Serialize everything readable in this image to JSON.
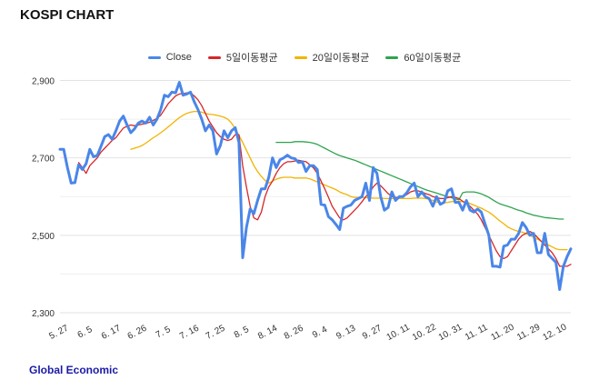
{
  "chart_title": "KOSPI CHART",
  "footer": "Global Economic",
  "colors": {
    "close": "#4a86e8",
    "ma5": "#d62728",
    "ma20": "#f1b400",
    "ma60": "#2ea44f",
    "grid": "#e2e2e2"
  },
  "chart_data": {
    "type": "line",
    "title": "KOSPI CHART",
    "xlabel": "",
    "ylabel": "",
    "ylim": [
      2300,
      2920
    ],
    "yticks": [
      2300,
      2500,
      2700,
      2900
    ],
    "ytick_labels": [
      "2,300",
      "2,500",
      "2,700",
      "2,900"
    ],
    "grid": true,
    "legend_position": "top",
    "x_ticks": [
      {
        "label": "5. 27",
        "index": 0
      },
      {
        "label": "6. 5",
        "index": 7
      },
      {
        "label": "6. 17",
        "index": 14
      },
      {
        "label": "6. 26",
        "index": 21
      },
      {
        "label": "7. 5",
        "index": 28
      },
      {
        "label": "7. 16",
        "index": 35
      },
      {
        "label": "7. 25",
        "index": 42
      },
      {
        "label": "8. 5",
        "index": 49
      },
      {
        "label": "8. 14",
        "index": 56
      },
      {
        "label": "8. 26",
        "index": 63
      },
      {
        "label": "9. 4",
        "index": 70
      },
      {
        "label": "9. 13",
        "index": 77
      },
      {
        "label": "9. 27",
        "index": 84
      },
      {
        "label": "10. 11",
        "index": 91
      },
      {
        "label": "10. 22",
        "index": 98
      },
      {
        "label": "10. 31",
        "index": 105
      },
      {
        "label": "11. 11",
        "index": 112
      },
      {
        "label": "11. 20",
        "index": 119
      },
      {
        "label": "11. 29",
        "index": 126
      },
      {
        "label": "12. 10",
        "index": 133
      }
    ],
    "series": [
      {
        "name": "Close",
        "values": [
          2722,
          2722,
          2675,
          2635,
          2636,
          2682,
          2670,
          2685,
          2722,
          2703,
          2706,
          2730,
          2755,
          2760,
          2748,
          2770,
          2795,
          2808,
          2785,
          2765,
          2775,
          2790,
          2795,
          2790,
          2805,
          2785,
          2800,
          2825,
          2862,
          2858,
          2870,
          2868,
          2895,
          2862,
          2865,
          2870,
          2845,
          2825,
          2800,
          2770,
          2785,
          2770,
          2710,
          2732,
          2770,
          2752,
          2770,
          2778,
          2740,
          2442,
          2520,
          2568,
          2556,
          2590,
          2620,
          2620,
          2650,
          2700,
          2675,
          2695,
          2700,
          2707,
          2700,
          2698,
          2688,
          2690,
          2665,
          2680,
          2680,
          2670,
          2580,
          2578,
          2548,
          2540,
          2528,
          2515,
          2570,
          2575,
          2578,
          2590,
          2595,
          2600,
          2635,
          2590,
          2675,
          2660,
          2600,
          2565,
          2572,
          2612,
          2590,
          2600,
          2600,
          2610,
          2625,
          2635,
          2600,
          2612,
          2600,
          2595,
          2575,
          2600,
          2580,
          2585,
          2615,
          2620,
          2585,
          2585,
          2565,
          2590,
          2565,
          2560,
          2568,
          2560,
          2530,
          2500,
          2420,
          2420,
          2418,
          2472,
          2475,
          2490,
          2490,
          2505,
          2533,
          2520,
          2500,
          2505,
          2455,
          2455,
          2505,
          2450,
          2440,
          2430,
          2360,
          2420,
          2445,
          2465
        ]
      },
      {
        "name": "5일이동평균",
        "values": [
          null,
          null,
          null,
          null,
          null,
          2688,
          2675,
          2660,
          2680,
          2690,
          2700,
          2715,
          2725,
          2735,
          2745,
          2752,
          2765,
          2777,
          2782,
          2785,
          2783,
          2785,
          2787,
          2789,
          2792,
          2797,
          2802,
          2810,
          2825,
          2840,
          2850,
          2860,
          2865,
          2866,
          2868,
          2868,
          2860,
          2850,
          2835,
          2815,
          2795,
          2780,
          2765,
          2755,
          2748,
          2745,
          2748,
          2760,
          2760,
          2680,
          2625,
          2575,
          2545,
          2540,
          2560,
          2600,
          2625,
          2640,
          2660,
          2675,
          2685,
          2690,
          2690,
          2692,
          2694,
          2692,
          2690,
          2682,
          2674,
          2660,
          2640,
          2620,
          2598,
          2575,
          2560,
          2545,
          2540,
          2545,
          2555,
          2565,
          2575,
          2587,
          2600,
          2610,
          2625,
          2635,
          2628,
          2618,
          2608,
          2600,
          2598,
          2598,
          2600,
          2605,
          2612,
          2615,
          2615,
          2612,
          2608,
          2605,
          2600,
          2598,
          2595,
          2595,
          2597,
          2600,
          2598,
          2595,
          2588,
          2582,
          2575,
          2565,
          2555,
          2540,
          2520,
          2500,
          2480,
          2460,
          2445,
          2440,
          2445,
          2460,
          2475,
          2490,
          2500,
          2505,
          2510,
          2505,
          2495,
          2485,
          2475,
          2465,
          2455,
          2440,
          2420,
          2420,
          2420,
          2425
        ]
      },
      {
        "name": "20일이동평균",
        "values": [
          null,
          null,
          null,
          null,
          null,
          null,
          null,
          null,
          null,
          null,
          null,
          null,
          null,
          null,
          null,
          null,
          null,
          null,
          null,
          2722,
          2725,
          2728,
          2732,
          2738,
          2745,
          2752,
          2758,
          2765,
          2772,
          2780,
          2788,
          2796,
          2804,
          2810,
          2815,
          2818,
          2820,
          2820,
          2818,
          2815,
          2813,
          2812,
          2810,
          2808,
          2805,
          2800,
          2790,
          2775,
          2758,
          2740,
          2720,
          2700,
          2680,
          2665,
          2652,
          2642,
          2635,
          2640,
          2645,
          2648,
          2650,
          2650,
          2650,
          2648,
          2648,
          2648,
          2648,
          2646,
          2642,
          2638,
          2634,
          2630,
          2626,
          2622,
          2618,
          2612,
          2608,
          2605,
          2600,
          2598,
          2598,
          2598,
          2597,
          2597,
          2596,
          2596,
          2596,
          2595,
          2595,
          2595,
          2595,
          2595,
          2595,
          2595,
          2595,
          2596,
          2596,
          2596,
          2595,
          2593,
          2590,
          2586,
          2584,
          2584,
          2585,
          2587,
          2588,
          2588,
          2587,
          2585,
          2582,
          2578,
          2574,
          2570,
          2565,
          2560,
          2553,
          2545,
          2537,
          2530,
          2522,
          2517,
          2513,
          2510,
          2508,
          2505,
          2500,
          2495,
          2490,
          2485,
          2480,
          2475,
          2470,
          2465,
          2463,
          2463,
          2463
        ]
      },
      {
        "name": "60일이동평균",
        "values": [
          null,
          null,
          null,
          null,
          null,
          null,
          null,
          null,
          null,
          null,
          null,
          null,
          null,
          null,
          null,
          null,
          null,
          null,
          null,
          null,
          null,
          null,
          null,
          null,
          null,
          null,
          null,
          null,
          null,
          null,
          null,
          null,
          null,
          null,
          null,
          null,
          null,
          null,
          null,
          null,
          null,
          null,
          null,
          null,
          null,
          null,
          null,
          null,
          null,
          null,
          null,
          null,
          null,
          null,
          null,
          null,
          null,
          null,
          2740,
          2740,
          2740,
          2740,
          2740,
          2742,
          2742,
          2742,
          2741,
          2740,
          2738,
          2735,
          2730,
          2725,
          2720,
          2715,
          2710,
          2706,
          2703,
          2700,
          2697,
          2694,
          2690,
          2686,
          2682,
          2678,
          2674,
          2670,
          2666,
          2662,
          2658,
          2654,
          2650,
          2646,
          2642,
          2638,
          2634,
          2630,
          2626,
          2622,
          2618,
          2615,
          2612,
          2609,
          2606,
          2603,
          2600,
          2597,
          2594,
          2592,
          2610,
          2612,
          2612,
          2612,
          2610,
          2607,
          2603,
          2598,
          2592,
          2586,
          2581,
          2578,
          2575,
          2572,
          2568,
          2565,
          2562,
          2558,
          2555,
          2552,
          2550,
          2548,
          2546,
          2545,
          2544,
          2543,
          2542,
          2542
        ]
      }
    ]
  }
}
